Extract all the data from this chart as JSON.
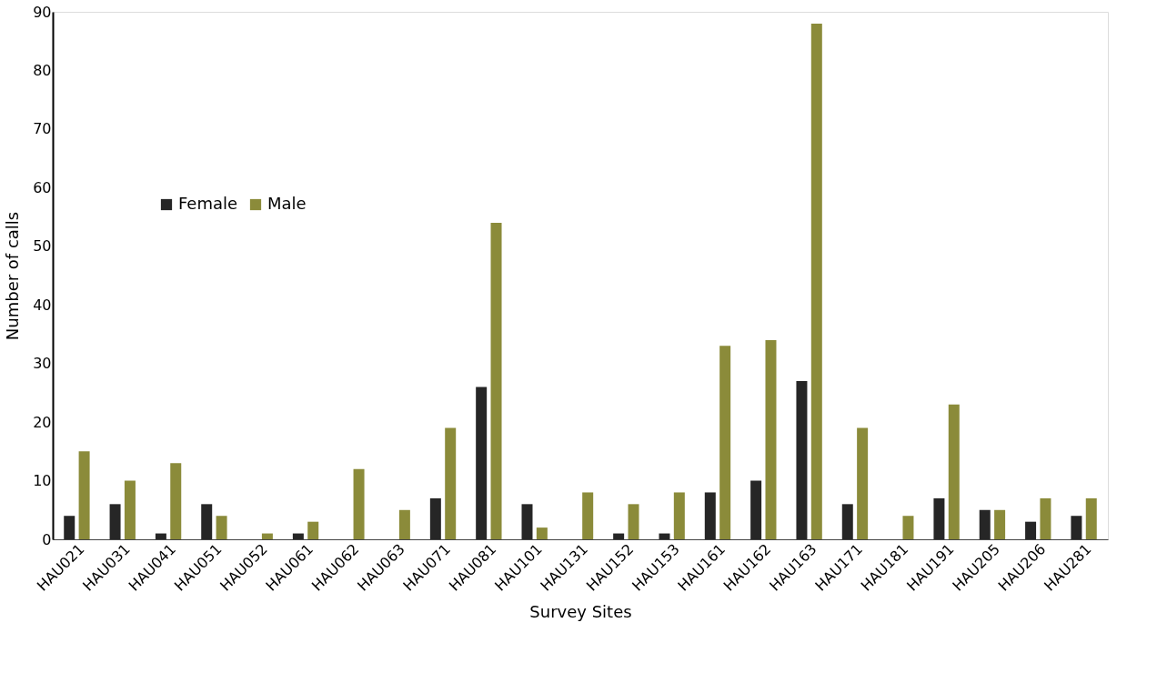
{
  "chart_data": {
    "type": "bar",
    "xlabel": "Survey Sites",
    "ylabel": "Number of calls",
    "categories": [
      "HAU021",
      "HAU031",
      "HAU041",
      "HAU051",
      "HAU052",
      "HAU061",
      "HAU062",
      "HAU063",
      "HAU071",
      "HAU081",
      "HAU101",
      "HAU131",
      "HAU152",
      "HAU153",
      "HAU161",
      "HAU162",
      "HAU163",
      "HAU171",
      "HAU181",
      "HAU191",
      "HAU205",
      "HAU206",
      "HAU281"
    ],
    "series": [
      {
        "name": "Female",
        "color": "#262626",
        "values": [
          4,
          6,
          1,
          6,
          0,
          1,
          0,
          0,
          7,
          26,
          6,
          0,
          1,
          1,
          8,
          10,
          27,
          6,
          0,
          7,
          5,
          3,
          4
        ]
      },
      {
        "name": "Male",
        "color": "#8b8b3a",
        "values": [
          15,
          10,
          13,
          4,
          1,
          3,
          12,
          5,
          19,
          54,
          2,
          8,
          6,
          8,
          33,
          34,
          88,
          19,
          4,
          23,
          5,
          7,
          7
        ]
      }
    ],
    "ylim": [
      0,
      90
    ],
    "yticks": [
      0,
      10,
      20,
      30,
      40,
      50,
      60,
      70,
      80,
      90
    ],
    "grid": false,
    "legend": "top left"
  }
}
